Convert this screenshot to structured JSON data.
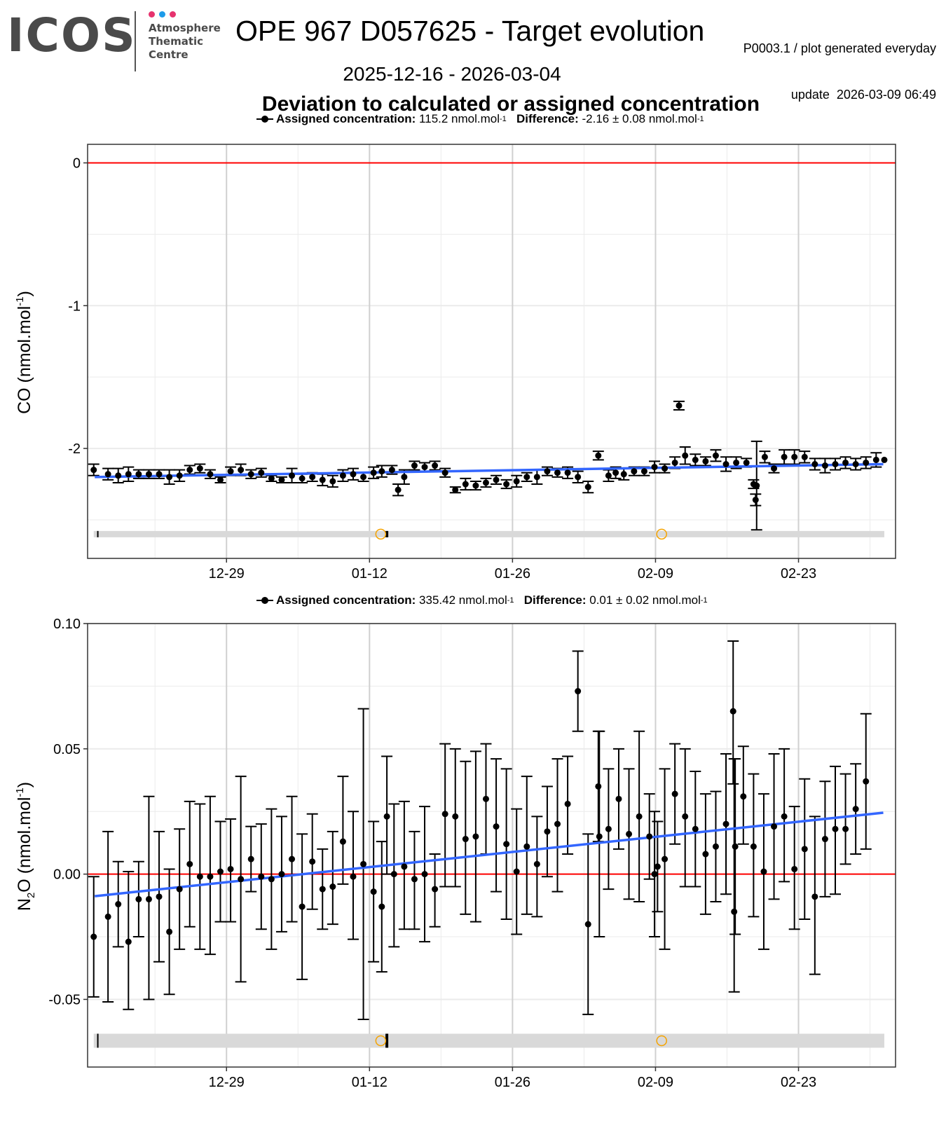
{
  "header": {
    "logo_text": "ICOS",
    "logo_sub": [
      "Atmosphere",
      "Thematic",
      "Centre"
    ],
    "logo_dot_colors": [
      "#e6336e",
      "#1e9be9",
      "#e6336e"
    ],
    "title": "OPE 967 D057625 - Target evolution",
    "meta_line1": "P0003.1 / plot generated everyday",
    "meta_line2": "update  2026-03-09 06:49",
    "date_range": "2025-12-16 - 2026-03-04",
    "subtitle": "Deviation to calculated or assigned concentration"
  },
  "colors": {
    "points": "#000000",
    "zero_line": "#ff0000",
    "trend_line": "#3366ff",
    "gap_band": "#d9d9d9",
    "marker_open_circle": "#f5a300",
    "grid_major": "#d0d0d0",
    "grid_minor": "#ebebeb"
  },
  "chart_data": [
    {
      "type": "scatter",
      "name": "CO",
      "legend": {
        "assigned_label": "Assigned concentration:",
        "assigned_value": "115.2 nmol.mol",
        "assigned_exp": "-1",
        "difference_label": "Difference:",
        "difference_value": "-2.16 ± 0.08 nmol.mol",
        "difference_exp": "-1"
      },
      "ylabel": "CO (nmol.mol",
      "ylabel_exp": "-1",
      "ylabel_close": ")",
      "ylim": [
        -2.77,
        0.13
      ],
      "yticks": [
        0,
        -1,
        -2
      ],
      "ytick_labels": [
        "0",
        "-1",
        "-2"
      ],
      "yminor": [
        -0.5,
        -1.5,
        -2.5
      ],
      "xlim_days": [
        -0.6,
        78.5
      ],
      "x_origin": "2025-12-16",
      "xticks_days": [
        13,
        27,
        41,
        55,
        69
      ],
      "xtick_labels": [
        "12-29",
        "01-12",
        "01-26",
        "02-09",
        "02-23"
      ],
      "xminor_days": [
        6,
        20,
        34,
        48,
        62,
        76
      ],
      "zero_line": 0,
      "trend": {
        "x": [
          0.1,
          77.3
        ],
        "y": [
          -2.2,
          -2.11
        ]
      },
      "gap_band_y": -2.6,
      "gap_ticks_days": [
        0.4,
        28.7
      ],
      "open_circles_days": [
        28.1,
        55.6
      ],
      "points": [
        {
          "x": 0.0,
          "y": -2.15,
          "e": 0.04
        },
        {
          "x": 1.4,
          "y": -2.18,
          "e": 0.04
        },
        {
          "x": 2.4,
          "y": -2.19,
          "e": 0.05
        },
        {
          "x": 3.4,
          "y": -2.18,
          "e": 0.05
        },
        {
          "x": 4.4,
          "y": -2.18,
          "e": 0.03
        },
        {
          "x": 5.4,
          "y": -2.18,
          "e": 0.03
        },
        {
          "x": 6.4,
          "y": -2.18,
          "e": 0.03
        },
        {
          "x": 7.4,
          "y": -2.2,
          "e": 0.05
        },
        {
          "x": 8.4,
          "y": -2.19,
          "e": 0.04
        },
        {
          "x": 9.4,
          "y": -2.15,
          "e": 0.03
        },
        {
          "x": 10.4,
          "y": -2.14,
          "e": 0.03
        },
        {
          "x": 11.4,
          "y": -2.18,
          "e": 0.03
        },
        {
          "x": 12.4,
          "y": -2.22,
          "e": 0.02
        },
        {
          "x": 13.4,
          "y": -2.16,
          "e": 0.03
        },
        {
          "x": 14.4,
          "y": -2.15,
          "e": 0.04
        },
        {
          "x": 15.4,
          "y": -2.18,
          "e": 0.03
        },
        {
          "x": 16.4,
          "y": -2.17,
          "e": 0.03
        },
        {
          "x": 17.4,
          "y": -2.21,
          "e": 0.02
        },
        {
          "x": 18.4,
          "y": -2.22,
          "e": 0.02
        },
        {
          "x": 19.4,
          "y": -2.19,
          "e": 0.05
        },
        {
          "x": 20.4,
          "y": -2.21,
          "e": 0.03
        },
        {
          "x": 21.4,
          "y": -2.2,
          "e": 0.03
        },
        {
          "x": 22.4,
          "y": -2.22,
          "e": 0.04
        },
        {
          "x": 23.4,
          "y": -2.23,
          "e": 0.04
        },
        {
          "x": 24.4,
          "y": -2.19,
          "e": 0.04
        },
        {
          "x": 25.4,
          "y": -2.18,
          "e": 0.04
        },
        {
          "x": 26.4,
          "y": -2.2,
          "e": 0.03
        },
        {
          "x": 27.4,
          "y": -2.17,
          "e": 0.04
        },
        {
          "x": 28.2,
          "y": -2.16,
          "e": 0.04
        },
        {
          "x": 29.2,
          "y": -2.15,
          "e": 0.03
        },
        {
          "x": 29.8,
          "y": -2.29,
          "e": 0.04
        },
        {
          "x": 30.4,
          "y": -2.2,
          "e": 0.05
        },
        {
          "x": 31.4,
          "y": -2.12,
          "e": 0.03
        },
        {
          "x": 32.4,
          "y": -2.13,
          "e": 0.03
        },
        {
          "x": 33.4,
          "y": -2.12,
          "e": 0.03
        },
        {
          "x": 34.4,
          "y": -2.17,
          "e": 0.03
        },
        {
          "x": 35.4,
          "y": -2.29,
          "e": 0.02
        },
        {
          "x": 36.4,
          "y": -2.25,
          "e": 0.04
        },
        {
          "x": 37.4,
          "y": -2.26,
          "e": 0.03
        },
        {
          "x": 38.4,
          "y": -2.24,
          "e": 0.03
        },
        {
          "x": 39.4,
          "y": -2.22,
          "e": 0.03
        },
        {
          "x": 40.4,
          "y": -2.25,
          "e": 0.03
        },
        {
          "x": 41.4,
          "y": -2.23,
          "e": 0.04
        },
        {
          "x": 42.4,
          "y": -2.2,
          "e": 0.03
        },
        {
          "x": 43.4,
          "y": -2.2,
          "e": 0.05
        },
        {
          "x": 44.4,
          "y": -2.16,
          "e": 0.03
        },
        {
          "x": 45.4,
          "y": -2.17,
          "e": 0.03
        },
        {
          "x": 46.4,
          "y": -2.17,
          "e": 0.04
        },
        {
          "x": 47.4,
          "y": -2.2,
          "e": 0.04
        },
        {
          "x": 48.4,
          "y": -2.27,
          "e": 0.04
        },
        {
          "x": 49.4,
          "y": -2.05,
          "e": 0.03
        },
        {
          "x": 50.4,
          "y": -2.19,
          "e": 0.04
        },
        {
          "x": 51.1,
          "y": -2.17,
          "e": 0.04
        },
        {
          "x": 51.9,
          "y": -2.18,
          "e": 0.04
        },
        {
          "x": 52.9,
          "y": -2.16,
          "e": 0.03
        },
        {
          "x": 53.9,
          "y": -2.16,
          "e": 0.03
        },
        {
          "x": 54.9,
          "y": -2.13,
          "e": 0.04
        },
        {
          "x": 55.9,
          "y": -2.14,
          "e": 0.03
        },
        {
          "x": 56.9,
          "y": -2.1,
          "e": 0.04
        },
        {
          "x": 57.3,
          "y": -1.7,
          "e": 0.03
        },
        {
          "x": 57.9,
          "y": -2.05,
          "e": 0.06
        },
        {
          "x": 58.9,
          "y": -2.08,
          "e": 0.04
        },
        {
          "x": 59.9,
          "y": -2.09,
          "e": 0.03
        },
        {
          "x": 60.9,
          "y": -2.05,
          "e": 0.04
        },
        {
          "x": 61.9,
          "y": -2.11,
          "e": 0.05
        },
        {
          "x": 62.9,
          "y": -2.1,
          "e": 0.04
        },
        {
          "x": 63.9,
          "y": -2.1,
          "e": 0.03
        },
        {
          "x": 64.6,
          "y": -2.25,
          "e": 0.03
        },
        {
          "x": 64.8,
          "y": -2.36,
          "e": 0.04
        },
        {
          "x": 64.9,
          "y": -2.26,
          "e": 0.31
        },
        {
          "x": 65.7,
          "y": -2.06,
          "e": 0.04
        },
        {
          "x": 66.6,
          "y": -2.14,
          "e": 0.03
        },
        {
          "x": 67.6,
          "y": -2.06,
          "e": 0.05
        },
        {
          "x": 68.6,
          "y": -2.06,
          "e": 0.05
        },
        {
          "x": 69.6,
          "y": -2.06,
          "e": 0.04
        },
        {
          "x": 70.6,
          "y": -2.11,
          "e": 0.04
        },
        {
          "x": 71.6,
          "y": -2.12,
          "e": 0.05
        },
        {
          "x": 72.6,
          "y": -2.11,
          "e": 0.04
        },
        {
          "x": 73.6,
          "y": -2.1,
          "e": 0.04
        },
        {
          "x": 74.6,
          "y": -2.11,
          "e": 0.04
        },
        {
          "x": 75.6,
          "y": -2.1,
          "e": 0.04
        },
        {
          "x": 76.6,
          "y": -2.08,
          "e": 0.05
        },
        {
          "x": 77.4,
          "y": -2.08,
          "e": 0.0
        }
      ]
    },
    {
      "type": "scatter",
      "name": "N2O",
      "legend": {
        "assigned_label": "Assigned concentration:",
        "assigned_value": "335.42 nmol.mol",
        "assigned_exp": "-1",
        "difference_label": "Difference:",
        "difference_value": "0.01 ± 0.02 nmol.mol",
        "difference_exp": "-1"
      },
      "ylabel": "N",
      "ylabel_sub": "2",
      "ylabel_rest": "O (nmol.mol",
      "ylabel_exp": "-1",
      "ylabel_close": ")",
      "ylim": [
        -0.077,
        0.1
      ],
      "yticks": [
        0.1,
        0.05,
        0,
        -0.05
      ],
      "ytick_labels": [
        "0.10",
        "0.05",
        "0.00",
        "-0.05"
      ],
      "yminor": [
        0.075,
        0.025,
        -0.025
      ],
      "xlim_days": [
        -0.6,
        78.5
      ],
      "x_origin": "2025-12-16",
      "xticks_days": [
        13,
        27,
        41,
        55,
        69
      ],
      "xtick_labels": [
        "12-29",
        "01-12",
        "01-26",
        "02-09",
        "02-23"
      ],
      "xminor_days": [
        6,
        20,
        34,
        48,
        62,
        76
      ],
      "zero_line": 0,
      "trend": {
        "x": [
          0.1,
          77.3
        ],
        "y": [
          -0.0088,
          0.0245
        ]
      },
      "gap_band_y": -0.0665,
      "gap_ticks_days": [
        0.4,
        28.7
      ],
      "open_circles_days": [
        28.1,
        55.6
      ],
      "points": [
        {
          "x": 0.0,
          "y": -0.025,
          "lo": -0.049,
          "hi": -0.001
        },
        {
          "x": 1.4,
          "y": -0.017,
          "lo": -0.051,
          "hi": 0.017
        },
        {
          "x": 2.4,
          "y": -0.012,
          "lo": -0.029,
          "hi": 0.005
        },
        {
          "x": 3.4,
          "y": -0.027,
          "lo": -0.054,
          "hi": 0.001
        },
        {
          "x": 4.4,
          "y": -0.01,
          "lo": -0.025,
          "hi": 0.005
        },
        {
          "x": 5.4,
          "y": -0.01,
          "lo": -0.05,
          "hi": 0.031
        },
        {
          "x": 6.4,
          "y": -0.009,
          "lo": -0.035,
          "hi": 0.017
        },
        {
          "x": 7.4,
          "y": -0.023,
          "lo": -0.048,
          "hi": 0.002
        },
        {
          "x": 8.4,
          "y": -0.006,
          "lo": -0.03,
          "hi": 0.018
        },
        {
          "x": 9.4,
          "y": 0.004,
          "lo": -0.021,
          "hi": 0.029
        },
        {
          "x": 10.4,
          "y": -0.001,
          "lo": -0.03,
          "hi": 0.028
        },
        {
          "x": 11.4,
          "y": -0.001,
          "lo": -0.032,
          "hi": 0.031
        },
        {
          "x": 12.4,
          "y": 0.001,
          "lo": -0.019,
          "hi": 0.021
        },
        {
          "x": 13.4,
          "y": 0.002,
          "lo": -0.019,
          "hi": 0.022
        },
        {
          "x": 14.4,
          "y": -0.002,
          "lo": -0.043,
          "hi": 0.039
        },
        {
          "x": 15.4,
          "y": 0.006,
          "lo": -0.007,
          "hi": 0.019
        },
        {
          "x": 16.4,
          "y": -0.001,
          "lo": -0.022,
          "hi": 0.02
        },
        {
          "x": 17.4,
          "y": -0.002,
          "lo": -0.03,
          "hi": 0.026
        },
        {
          "x": 18.4,
          "y": 0.0,
          "lo": -0.023,
          "hi": 0.023
        },
        {
          "x": 19.4,
          "y": 0.006,
          "lo": -0.019,
          "hi": 0.031
        },
        {
          "x": 20.4,
          "y": -0.013,
          "lo": -0.042,
          "hi": 0.016
        },
        {
          "x": 21.4,
          "y": 0.005,
          "lo": -0.014,
          "hi": 0.024
        },
        {
          "x": 22.4,
          "y": -0.006,
          "lo": -0.022,
          "hi": 0.01
        },
        {
          "x": 23.4,
          "y": -0.005,
          "lo": -0.02,
          "hi": 0.017
        },
        {
          "x": 24.4,
          "y": 0.013,
          "lo": -0.004,
          "hi": 0.039
        },
        {
          "x": 25.4,
          "y": -0.001,
          "lo": -0.026,
          "hi": 0.025
        },
        {
          "x": 26.4,
          "y": 0.004,
          "lo": -0.058,
          "hi": 0.066
        },
        {
          "x": 27.4,
          "y": -0.007,
          "lo": -0.035,
          "hi": 0.021
        },
        {
          "x": 28.2,
          "y": -0.013,
          "lo": -0.039,
          "hi": 0.013
        },
        {
          "x": 28.7,
          "y": 0.023,
          "lo": 0.0,
          "hi": 0.047
        },
        {
          "x": 29.4,
          "y": 0.0,
          "lo": -0.029,
          "hi": 0.028
        },
        {
          "x": 30.4,
          "y": 0.003,
          "lo": -0.022,
          "hi": 0.029
        },
        {
          "x": 31.4,
          "y": -0.002,
          "lo": -0.022,
          "hi": 0.017
        },
        {
          "x": 32.4,
          "y": 0.0,
          "lo": -0.027,
          "hi": 0.027
        },
        {
          "x": 33.4,
          "y": -0.006,
          "lo": -0.021,
          "hi": 0.008
        },
        {
          "x": 34.4,
          "y": 0.024,
          "lo": -0.005,
          "hi": 0.052
        },
        {
          "x": 35.4,
          "y": 0.023,
          "lo": -0.005,
          "hi": 0.05
        },
        {
          "x": 36.4,
          "y": 0.014,
          "lo": -0.016,
          "hi": 0.045
        },
        {
          "x": 37.4,
          "y": 0.015,
          "lo": -0.019,
          "hi": 0.049
        },
        {
          "x": 38.4,
          "y": 0.03,
          "lo": 0.008,
          "hi": 0.052
        },
        {
          "x": 39.4,
          "y": 0.019,
          "lo": -0.007,
          "hi": 0.046
        },
        {
          "x": 40.4,
          "y": 0.012,
          "lo": -0.018,
          "hi": 0.042
        },
        {
          "x": 41.4,
          "y": 0.001,
          "lo": -0.024,
          "hi": 0.026
        },
        {
          "x": 42.4,
          "y": 0.011,
          "lo": -0.016,
          "hi": 0.039
        },
        {
          "x": 43.4,
          "y": 0.004,
          "lo": -0.017,
          "hi": 0.023
        },
        {
          "x": 44.4,
          "y": 0.017,
          "lo": -0.001,
          "hi": 0.035
        },
        {
          "x": 45.4,
          "y": 0.02,
          "lo": -0.007,
          "hi": 0.046
        },
        {
          "x": 46.4,
          "y": 0.028,
          "lo": 0.008,
          "hi": 0.047
        },
        {
          "x": 47.4,
          "y": 0.073,
          "lo": 0.057,
          "hi": 0.089
        },
        {
          "x": 48.4,
          "y": -0.02,
          "lo": -0.056,
          "hi": 0.016
        },
        {
          "x": 49.4,
          "y": 0.035,
          "lo": 0.013,
          "hi": 0.057
        },
        {
          "x": 49.5,
          "y": 0.015,
          "lo": -0.025,
          "hi": 0.057
        },
        {
          "x": 50.4,
          "y": 0.018,
          "lo": -0.006,
          "hi": 0.042
        },
        {
          "x": 51.4,
          "y": 0.03,
          "lo": 0.01,
          "hi": 0.05
        },
        {
          "x": 52.4,
          "y": 0.016,
          "lo": -0.01,
          "hi": 0.042
        },
        {
          "x": 53.4,
          "y": 0.023,
          "lo": -0.011,
          "hi": 0.057
        },
        {
          "x": 54.4,
          "y": 0.015,
          "lo": -0.002,
          "hi": 0.032
        },
        {
          "x": 54.9,
          "y": 0.0,
          "lo": -0.025,
          "hi": 0.025
        },
        {
          "x": 55.2,
          "y": 0.003,
          "lo": -0.015,
          "hi": 0.021
        },
        {
          "x": 55.9,
          "y": 0.006,
          "lo": -0.03,
          "hi": 0.042
        },
        {
          "x": 56.9,
          "y": 0.032,
          "lo": 0.012,
          "hi": 0.052
        },
        {
          "x": 57.9,
          "y": 0.023,
          "lo": -0.005,
          "hi": 0.05
        },
        {
          "x": 58.9,
          "y": 0.018,
          "lo": -0.005,
          "hi": 0.041
        },
        {
          "x": 59.9,
          "y": 0.008,
          "lo": -0.016,
          "hi": 0.032
        },
        {
          "x": 60.9,
          "y": 0.011,
          "lo": -0.011,
          "hi": 0.033
        },
        {
          "x": 61.9,
          "y": 0.02,
          "lo": -0.008,
          "hi": 0.048
        },
        {
          "x": 62.6,
          "y": 0.065,
          "lo": 0.036,
          "hi": 0.093
        },
        {
          "x": 62.7,
          "y": -0.015,
          "lo": -0.047,
          "hi": 0.046
        },
        {
          "x": 62.8,
          "y": 0.011,
          "lo": -0.024,
          "hi": 0.046
        },
        {
          "x": 63.6,
          "y": 0.031,
          "lo": 0.012,
          "hi": 0.051
        },
        {
          "x": 64.6,
          "y": 0.011,
          "lo": -0.017,
          "hi": 0.04
        },
        {
          "x": 65.6,
          "y": 0.001,
          "lo": -0.03,
          "hi": 0.032
        },
        {
          "x": 66.6,
          "y": 0.019,
          "lo": -0.01,
          "hi": 0.048
        },
        {
          "x": 67.6,
          "y": 0.023,
          "lo": -0.003,
          "hi": 0.05
        },
        {
          "x": 68.6,
          "y": 0.002,
          "lo": -0.022,
          "hi": 0.027
        },
        {
          "x": 69.6,
          "y": 0.01,
          "lo": -0.018,
          "hi": 0.038
        },
        {
          "x": 70.6,
          "y": -0.009,
          "lo": -0.04,
          "hi": 0.023
        },
        {
          "x": 71.6,
          "y": 0.014,
          "lo": -0.009,
          "hi": 0.037
        },
        {
          "x": 72.6,
          "y": 0.018,
          "lo": -0.008,
          "hi": 0.043
        },
        {
          "x": 73.6,
          "y": 0.018,
          "lo": 0.004,
          "hi": 0.04
        },
        {
          "x": 74.6,
          "y": 0.026,
          "lo": 0.008,
          "hi": 0.044
        },
        {
          "x": 75.6,
          "y": 0.037,
          "lo": 0.01,
          "hi": 0.064
        }
      ]
    }
  ]
}
